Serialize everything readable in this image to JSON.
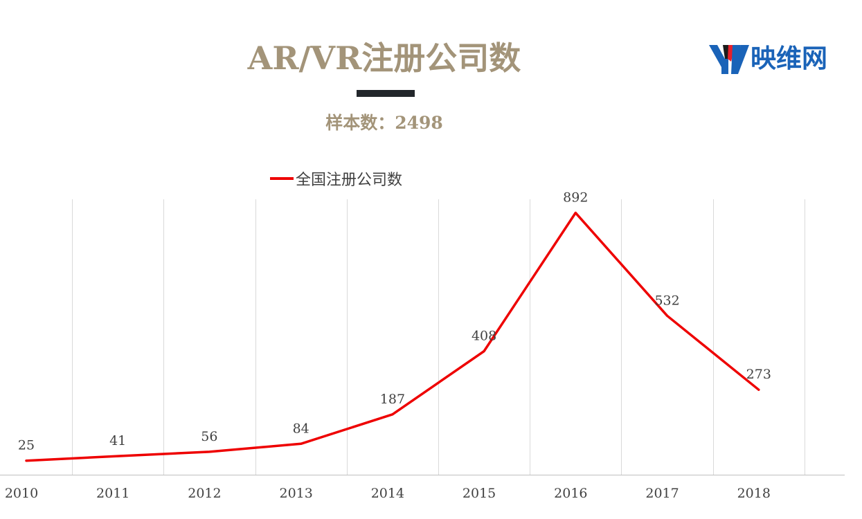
{
  "header": {
    "title": "AR/VR注册公司数",
    "subtitle": "样本数：2498"
  },
  "logo": {
    "text": "映维网",
    "mark_icon": "yv-logo-icon",
    "colors": {
      "blue": "#1a63b8",
      "red": "#e8202a",
      "dark": "#1b1b1b"
    }
  },
  "colors": {
    "title": "#a39479",
    "title_bar": "#22262b",
    "line": "#ee0000",
    "grid": "#d9d9d9",
    "axis": "#bfbfbf",
    "text": "#404040"
  },
  "chart_data": {
    "type": "line",
    "categories": [
      "2010",
      "2011",
      "2012",
      "2013",
      "2014",
      "2015",
      "2016",
      "2017",
      "2018"
    ],
    "series": [
      {
        "name": "全国注册公司数",
        "values": [
          25,
          41,
          56,
          84,
          187,
          408,
          892,
          532,
          273
        ]
      }
    ],
    "title": "AR/VR注册公司数",
    "subtitle": "样本数：2498",
    "xlabel": "",
    "ylabel": "",
    "ylim": [
      0,
      1000
    ],
    "grid": "vertical",
    "legend": "top",
    "data_labels": true
  }
}
